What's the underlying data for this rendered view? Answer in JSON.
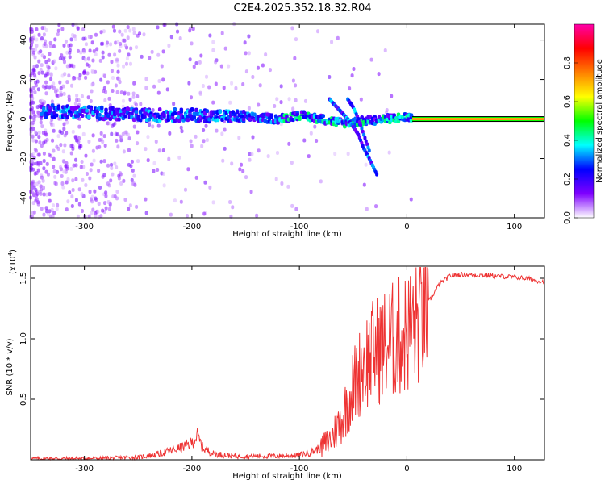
{
  "title": "C2E4.2025.352.18.32.R04",
  "chart_data": [
    {
      "type": "heatmap",
      "xlabel": "Height of straight line (km)",
      "ylabel": "Frequency (Hz)",
      "colorbar_label": "Normalized spectral amplitude",
      "xlim": [
        -350,
        128
      ],
      "ylim": [
        -50,
        48
      ],
      "xticks": [
        -300,
        -200,
        -100,
        0,
        100
      ],
      "yticks": [
        -40,
        -20,
        0,
        20,
        40
      ],
      "colorbar_range": [
        0,
        1
      ],
      "colorbar_ticks": [
        "0.0",
        "0.2",
        "0.4",
        "0.6",
        "0.8"
      ],
      "colormap": [
        "#ffffff",
        "#7f00ff",
        "#0000ff",
        "#00ffff",
        "#00ff00",
        "#ffff00",
        "#ff7f00",
        "#ff0000",
        "#ff00aa"
      ],
      "ridge": {
        "x": [
          -320,
          -250,
          -200,
          -150,
          -120,
          -100,
          -80,
          -60,
          -40,
          -20,
          0,
          128
        ],
        "frequency": [
          4,
          2,
          2,
          1,
          0,
          2,
          0,
          -2,
          -1,
          0,
          1,
          0
        ]
      },
      "branches": [
        {
          "x": [
            -72,
            -55,
            -45,
            -40,
            -35,
            -28
          ],
          "frequency": [
            10,
            0,
            -8,
            -15,
            -20,
            -28
          ]
        },
        {
          "x": [
            -55,
            -50,
            -45,
            -40,
            -35
          ],
          "frequency": [
            10,
            6,
            0,
            -8,
            -16
          ]
        }
      ],
      "pure_tone": {
        "x_start": 5,
        "x_end": 128,
        "frequency": 0,
        "amplitude": 1.0
      }
    },
    {
      "type": "line",
      "xlabel": "Height of straight line (km)",
      "ylabel": "SNR (10 * v/v)",
      "scale_note": "(x10",
      "scale_exp": "4",
      "xlim": [
        -350,
        128
      ],
      "ylim": [
        0,
        1.6
      ],
      "xticks": [
        -300,
        -200,
        -100,
        0,
        100
      ],
      "yticks": [
        "0.5",
        "1.0",
        "1.5"
      ],
      "color": "#ee3333",
      "series": [
        {
          "x": [
            -350,
            -300,
            -250,
            -230,
            -210,
            -200,
            -195,
            -190,
            -180,
            -160,
            -140,
            -120,
            -100,
            -90,
            -80,
            -70,
            -60,
            -50,
            -40,
            -30,
            -20,
            -10,
            0,
            10,
            20,
            30,
            40,
            50,
            60,
            80,
            100,
            110,
            128
          ],
          "values": [
            0.01,
            0.01,
            0.02,
            0.05,
            0.1,
            0.14,
            0.2,
            0.1,
            0.05,
            0.03,
            0.03,
            0.03,
            0.04,
            0.06,
            0.1,
            0.18,
            0.35,
            0.6,
            0.8,
            0.9,
            0.95,
            1.0,
            1.05,
            1.15,
            1.3,
            1.45,
            1.52,
            1.53,
            1.53,
            1.52,
            1.51,
            1.5,
            1.47
          ]
        }
      ]
    }
  ]
}
